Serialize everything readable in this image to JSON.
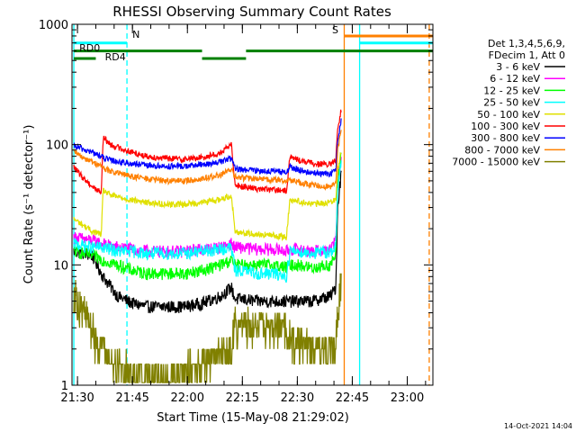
{
  "chart_data": {
    "type": "line",
    "title": "RHESSI Observing Summary Count Rates",
    "xlabel": "Start Time (15-May-08 21:29:02)",
    "ylabel": "Count Rate (s⁻¹ detector⁻¹)",
    "yscale": "log",
    "ylim": [
      1,
      1000
    ],
    "xlim_minutes": [
      -0.5,
      98
    ],
    "x_ticks": [
      {
        "minute": 1,
        "label": "21:30"
      },
      {
        "minute": 16,
        "label": "21:45"
      },
      {
        "minute": 31,
        "label": "22:00"
      },
      {
        "minute": 46,
        "label": "22:15"
      },
      {
        "minute": 61,
        "label": "22:30"
      },
      {
        "minute": 76,
        "label": "22:45"
      },
      {
        "minute": 91,
        "label": "23:00"
      }
    ],
    "y_ticks": [
      {
        "value": 1,
        "label": "1"
      },
      {
        "value": 10,
        "label": "10"
      },
      {
        "value": 100,
        "label": "100"
      },
      {
        "value": 1000,
        "label": "1000"
      }
    ],
    "legend": {
      "placement": "top-right-outside",
      "header": [
        "Det 1,3,4,5,6,9,",
        "FDecim 1, Att 0"
      ]
    },
    "series": [
      {
        "name": "3 - 6 keV",
        "color": "#000000",
        "x": [
          0,
          5,
          8,
          12,
          16,
          20,
          25,
          30,
          35,
          40,
          43,
          44,
          46,
          50,
          55,
          58,
          59,
          61,
          65,
          70,
          71.5,
          72,
          73
        ],
        "y": [
          13,
          12,
          8,
          5.5,
          4.8,
          4.5,
          4.5,
          4.5,
          4.8,
          5.5,
          6.5,
          5.2,
          5.2,
          5,
          5,
          5,
          5,
          5,
          5,
          5.5,
          6.5,
          30,
          60
        ]
      },
      {
        "name": "6 - 12 keV",
        "color": "#ff00ff",
        "x": [
          0,
          5,
          8,
          12,
          16,
          20,
          25,
          30,
          35,
          40,
          43,
          44,
          46,
          50,
          55,
          58,
          59,
          61,
          65,
          70,
          71.5,
          72,
          73
        ],
        "y": [
          17,
          16,
          15,
          14,
          13.5,
          13,
          13,
          13,
          13.5,
          14,
          15,
          14,
          14,
          13.5,
          13.5,
          13,
          13.5,
          13.5,
          13,
          13.5,
          16,
          50,
          80
        ]
      },
      {
        "name": "12 - 25 keV",
        "color": "#00ff00",
        "x": [
          0,
          5,
          8,
          12,
          16,
          20,
          25,
          30,
          35,
          40,
          43,
          44,
          46,
          50,
          55,
          58,
          59,
          61,
          65,
          70,
          71.5,
          72,
          73
        ],
        "y": [
          13,
          12,
          11,
          10,
          9,
          8.5,
          8.5,
          8.5,
          9,
          10,
          11,
          10,
          10,
          10,
          10,
          9.5,
          10,
          10,
          9.5,
          10,
          12,
          45,
          90
        ]
      },
      {
        "name": "25 - 50 keV",
        "color": "#00ffff",
        "x": [
          0,
          5,
          8,
          12,
          16,
          20,
          25,
          30,
          35,
          40,
          43,
          44,
          46,
          50,
          55,
          58,
          59,
          61,
          65,
          70,
          71.5,
          72,
          73
        ],
        "y": [
          15,
          14,
          14,
          13,
          13,
          12.5,
          12.5,
          12.5,
          13,
          13.5,
          14,
          9,
          9,
          8.5,
          8.5,
          8,
          13,
          13,
          12.5,
          13,
          14,
          40,
          80
        ]
      },
      {
        "name": "50 - 100 keV",
        "color": "#e0e000",
        "x": [
          0,
          2,
          5,
          7.5,
          8,
          10,
          15,
          20,
          25,
          30,
          35,
          40,
          43,
          44,
          46,
          50,
          55,
          58,
          59,
          61,
          65,
          70,
          71.5,
          72,
          73
        ],
        "y": [
          24,
          22,
          19,
          18,
          42,
          38,
          35,
          33,
          32,
          32,
          33,
          35,
          38,
          19,
          18.5,
          18,
          17.5,
          17,
          35,
          34,
          32,
          33,
          36,
          60,
          90
        ]
      },
      {
        "name": "100 - 300 keV",
        "color": "#ff0000",
        "x": [
          0,
          2,
          5,
          7.5,
          8,
          10,
          15,
          20,
          25,
          30,
          35,
          40,
          43,
          44,
          46,
          50,
          55,
          58,
          59,
          61,
          65,
          70,
          71.5,
          72,
          73
        ],
        "y": [
          65,
          55,
          45,
          40,
          115,
          100,
          88,
          80,
          77,
          76,
          78,
          85,
          100,
          47,
          45,
          43,
          42,
          41,
          80,
          75,
          70,
          68,
          75,
          130,
          200
        ]
      },
      {
        "name": "300 - 800 keV",
        "color": "#0000ff",
        "x": [
          0,
          2,
          5,
          7.5,
          8,
          10,
          15,
          20,
          25,
          30,
          35,
          40,
          43,
          44,
          46,
          50,
          55,
          58,
          59,
          61,
          65,
          70,
          71.5,
          72,
          73
        ],
        "y": [
          97,
          93,
          86,
          80,
          78,
          74,
          70,
          67,
          66,
          66,
          68,
          72,
          77,
          63,
          62,
          61,
          60,
          59,
          65,
          62,
          58,
          57,
          60,
          110,
          160
        ]
      },
      {
        "name": "800 - 7000 keV",
        "color": "#ff8000",
        "x": [
          0,
          2,
          5,
          7.5,
          8,
          10,
          15,
          20,
          25,
          30,
          35,
          40,
          43,
          44,
          46,
          50,
          55,
          58,
          59,
          61,
          65,
          70,
          71.5,
          72,
          73
        ],
        "y": [
          87,
          80,
          72,
          66,
          64,
          60,
          55,
          52,
          50,
          50,
          52,
          56,
          62,
          54,
          53,
          52,
          51,
          50,
          51,
          49,
          46,
          45,
          48,
          90,
          130
        ]
      },
      {
        "name": "7000 - 15000 keV",
        "color": "#808000",
        "x": [
          0,
          2,
          4,
          6,
          8,
          10,
          13,
          16,
          20,
          25,
          30,
          35,
          40,
          43,
          44,
          46,
          50,
          55,
          58,
          59,
          61,
          65,
          70,
          71.5,
          72,
          73
        ],
        "y": [
          6,
          4.5,
          3.5,
          2.5,
          2,
          1.6,
          1.4,
          1.3,
          1.2,
          1.2,
          1.3,
          1.5,
          1.8,
          2.2,
          3.2,
          3.3,
          3.2,
          3,
          3,
          2.5,
          2.3,
          2,
          2,
          2.2,
          4,
          8
        ]
      }
    ],
    "attenuator_bars": [
      {
        "color": "#00ffff",
        "y": 700,
        "x": [
          0,
          14.5
        ]
      },
      {
        "color": "#00ffff",
        "y": 700,
        "x": [
          78,
          98
        ]
      },
      {
        "color": "#008000",
        "y": 600,
        "x": [
          0,
          35
        ]
      },
      {
        "color": "#008000",
        "y": 600,
        "x": [
          47,
          98
        ]
      },
      {
        "color": "#008000",
        "y": 520,
        "x": [
          0,
          6
        ]
      },
      {
        "color": "#008000",
        "y": 520,
        "x": [
          35,
          47
        ]
      },
      {
        "color": "#ff8000",
        "y": 800,
        "x": [
          73.8,
          98
        ]
      }
    ],
    "bar_labels": [
      {
        "text": "RD0",
        "x": 1.5,
        "y": 640,
        "color": "#008000"
      },
      {
        "text": "RD4",
        "x": 8.5,
        "y": 540,
        "color": "#008000"
      },
      {
        "text": "N",
        "x": 16,
        "y": 830,
        "color": "#00ffff"
      },
      {
        "text": "S",
        "x": 70.5,
        "y": 900,
        "color": "#ff8000"
      }
    ],
    "vertical_lines": [
      {
        "x": 0,
        "color": "#00ffff",
        "style": "solid"
      },
      {
        "x": 14.5,
        "color": "#00ffff",
        "style": "dashed"
      },
      {
        "x": 73.8,
        "color": "#ff8000",
        "style": "solid"
      },
      {
        "x": 78,
        "color": "#00ffff",
        "style": "solid"
      },
      {
        "x": 97,
        "color": "#ff8000",
        "style": "dashed"
      }
    ],
    "timestamp": "14-Oct-2021 14:04"
  }
}
